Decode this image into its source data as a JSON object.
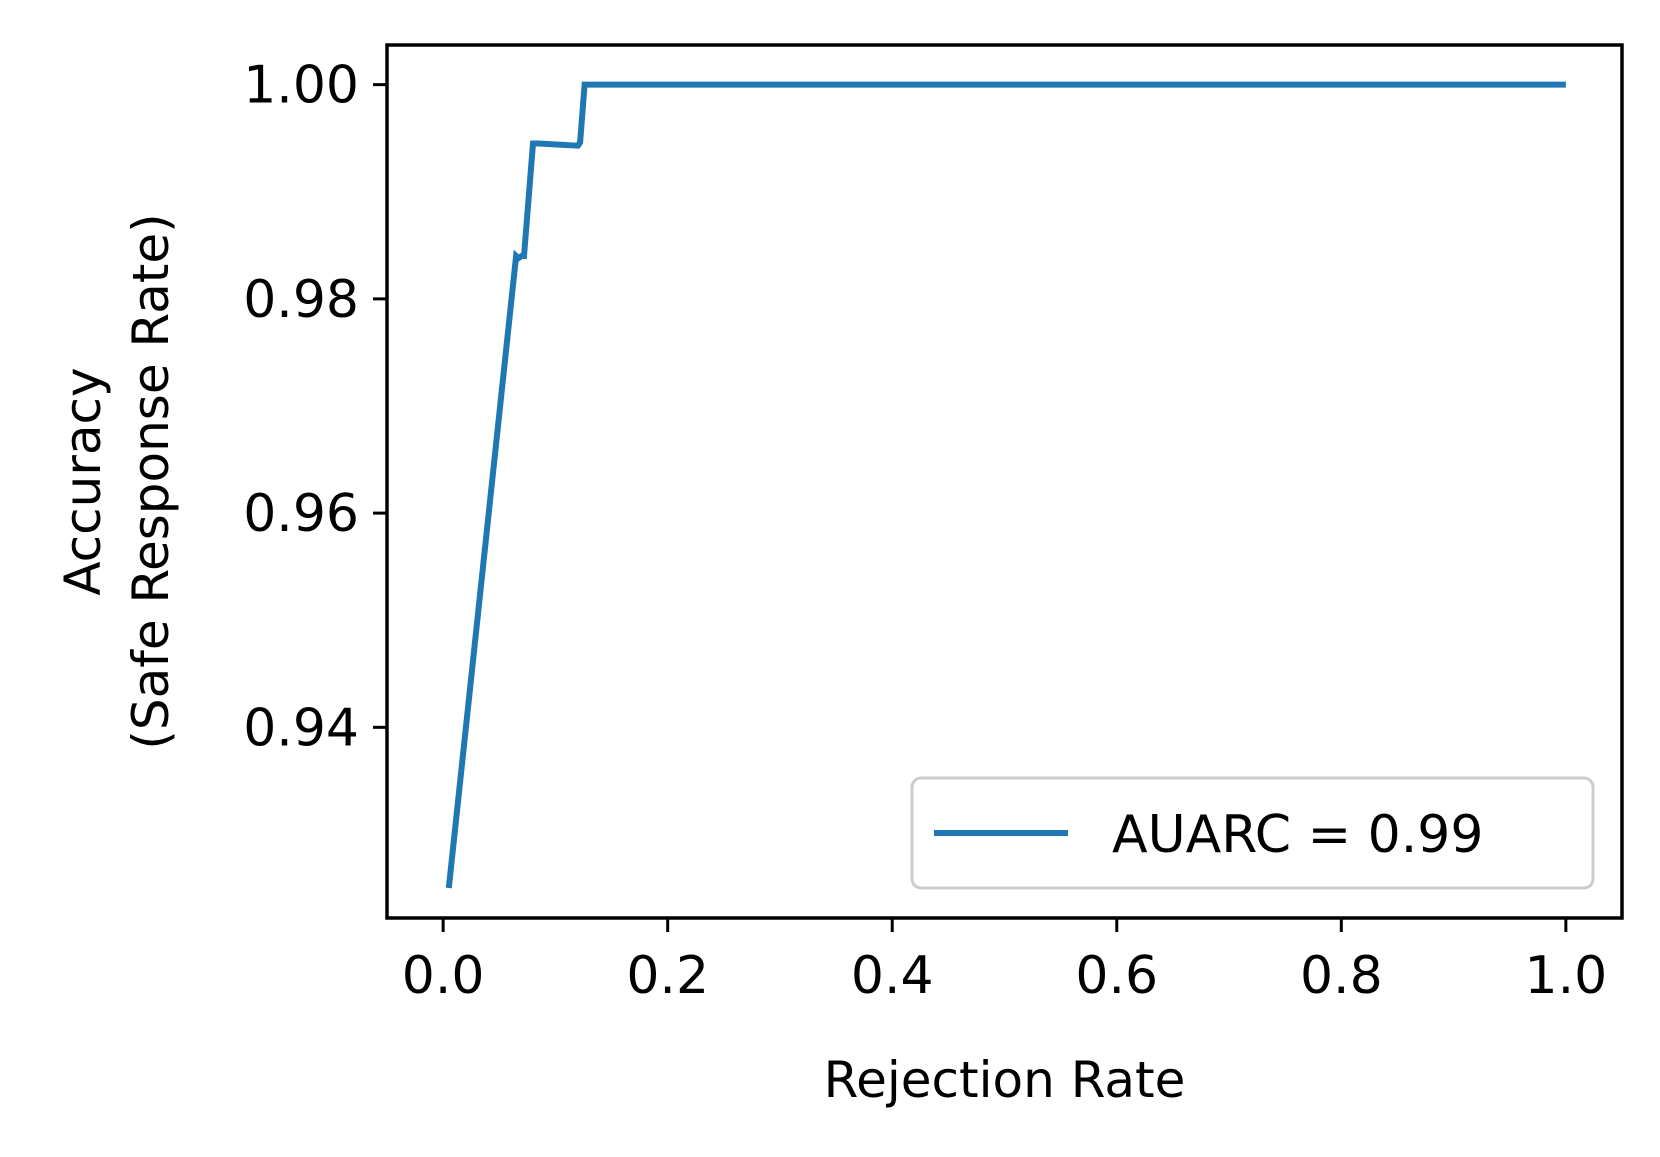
{
  "chart_data": {
    "type": "line",
    "title": "",
    "xlabel": "Rejection Rate",
    "ylabel_lines": [
      "Accuracy",
      "(Safe Response Rate)"
    ],
    "xlim": [
      -0.05,
      1.05
    ],
    "ylim": [
      0.9222,
      1.0037
    ],
    "xticks": [
      0.0,
      0.2,
      0.4,
      0.6,
      0.8,
      1.0
    ],
    "xtick_labels": [
      "0.0",
      "0.2",
      "0.4",
      "0.6",
      "0.8",
      "1.0"
    ],
    "yticks": [
      0.94,
      0.96,
      0.98,
      1.0
    ],
    "ytick_labels": [
      "0.94",
      "0.96",
      "0.98",
      "1.00"
    ],
    "grid": false,
    "legend_position": "lower-right",
    "series": [
      {
        "name": "AUARC = 0.99",
        "color": "#1f77b4",
        "x": [
          0.005,
          0.065,
          0.067,
          0.07,
          0.072,
          0.08,
          0.085,
          0.12,
          0.122,
          0.126,
          0.128,
          1.0
        ],
        "y": [
          0.925,
          0.984,
          0.9838,
          0.984,
          0.984,
          0.9945,
          0.9945,
          0.9943,
          0.9946,
          1.0,
          1.0,
          1.0
        ]
      }
    ]
  }
}
